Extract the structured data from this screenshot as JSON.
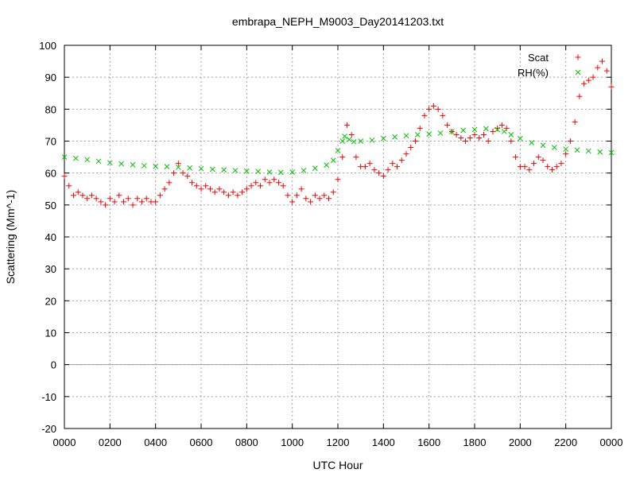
{
  "chart_data": {
    "type": "scatter",
    "title": "embrapa_NEPH_M9003_Day20141203.txt",
    "xlabel": "UTC Hour",
    "ylabel": "Scattering (Mm^-1)",
    "xlim": [
      0,
      24
    ],
    "ylim": [
      -20,
      100
    ],
    "x_tick_labels": [
      "0000",
      "0200",
      "0400",
      "0600",
      "0800",
      "1000",
      "1200",
      "1400",
      "1600",
      "1800",
      "2000",
      "2200",
      "0000"
    ],
    "y_tick_labels": [
      "-20",
      "-10",
      "0",
      "10",
      "20",
      "30",
      "40",
      "50",
      "60",
      "70",
      "80",
      "90",
      "100"
    ],
    "grid": true,
    "legend_position": "top-right",
    "series": [
      {
        "name": "Scat",
        "marker": "+",
        "color": "#ff0000",
        "points": [
          [
            0.0,
            59
          ],
          [
            0.2,
            56
          ],
          [
            0.4,
            53
          ],
          [
            0.6,
            54
          ],
          [
            0.8,
            53
          ],
          [
            1.0,
            52
          ],
          [
            1.2,
            53
          ],
          [
            1.4,
            52
          ],
          [
            1.6,
            51
          ],
          [
            1.8,
            50
          ],
          [
            2.0,
            52
          ],
          [
            2.2,
            51
          ],
          [
            2.4,
            53
          ],
          [
            2.6,
            51
          ],
          [
            2.8,
            52
          ],
          [
            3.0,
            50
          ],
          [
            3.2,
            52
          ],
          [
            3.4,
            51
          ],
          [
            3.6,
            52
          ],
          [
            3.8,
            51
          ],
          [
            4.0,
            51
          ],
          [
            4.2,
            53
          ],
          [
            4.4,
            55
          ],
          [
            4.6,
            57
          ],
          [
            4.8,
            60
          ],
          [
            5.0,
            63
          ],
          [
            5.2,
            60
          ],
          [
            5.4,
            59
          ],
          [
            5.6,
            57
          ],
          [
            5.8,
            56
          ],
          [
            6.0,
            55
          ],
          [
            6.2,
            56
          ],
          [
            6.4,
            55
          ],
          [
            6.6,
            54
          ],
          [
            6.8,
            55
          ],
          [
            7.0,
            54
          ],
          [
            7.2,
            53
          ],
          [
            7.4,
            54
          ],
          [
            7.6,
            53
          ],
          [
            7.8,
            54
          ],
          [
            8.0,
            55
          ],
          [
            8.2,
            56
          ],
          [
            8.4,
            57
          ],
          [
            8.6,
            56
          ],
          [
            8.8,
            58
          ],
          [
            9.0,
            57
          ],
          [
            9.2,
            58
          ],
          [
            9.4,
            57
          ],
          [
            9.6,
            56
          ],
          [
            9.8,
            53
          ],
          [
            10.0,
            51
          ],
          [
            10.2,
            53
          ],
          [
            10.4,
            55
          ],
          [
            10.6,
            52
          ],
          [
            10.8,
            51
          ],
          [
            11.0,
            53
          ],
          [
            11.2,
            52
          ],
          [
            11.4,
            53
          ],
          [
            11.6,
            52
          ],
          [
            11.8,
            54
          ],
          [
            12.0,
            58
          ],
          [
            12.2,
            65
          ],
          [
            12.4,
            75
          ],
          [
            12.6,
            72
          ],
          [
            12.8,
            65
          ],
          [
            13.0,
            62
          ],
          [
            13.2,
            62
          ],
          [
            13.4,
            63
          ],
          [
            13.6,
            61
          ],
          [
            13.8,
            60
          ],
          [
            14.0,
            59
          ],
          [
            14.2,
            61
          ],
          [
            14.4,
            63
          ],
          [
            14.6,
            62
          ],
          [
            14.8,
            64
          ],
          [
            15.0,
            66
          ],
          [
            15.2,
            68
          ],
          [
            15.4,
            70
          ],
          [
            15.6,
            74
          ],
          [
            15.8,
            78
          ],
          [
            16.0,
            80
          ],
          [
            16.2,
            81
          ],
          [
            16.4,
            80
          ],
          [
            16.6,
            78
          ],
          [
            16.8,
            75
          ],
          [
            17.0,
            73
          ],
          [
            17.2,
            72
          ],
          [
            17.4,
            71
          ],
          [
            17.6,
            70
          ],
          [
            17.8,
            71
          ],
          [
            18.0,
            72
          ],
          [
            18.2,
            71
          ],
          [
            18.4,
            72
          ],
          [
            18.6,
            70
          ],
          [
            18.8,
            73
          ],
          [
            19.0,
            74
          ],
          [
            19.2,
            75
          ],
          [
            19.4,
            74
          ],
          [
            19.6,
            70
          ],
          [
            19.8,
            65
          ],
          [
            20.0,
            62
          ],
          [
            20.2,
            62
          ],
          [
            20.4,
            61
          ],
          [
            20.6,
            63
          ],
          [
            20.8,
            65
          ],
          [
            21.0,
            64
          ],
          [
            21.2,
            62
          ],
          [
            21.4,
            61
          ],
          [
            21.6,
            62
          ],
          [
            21.8,
            63
          ],
          [
            22.0,
            66
          ],
          [
            22.2,
            70
          ],
          [
            22.4,
            76
          ],
          [
            22.6,
            84
          ],
          [
            22.8,
            88
          ],
          [
            23.0,
            89
          ],
          [
            23.2,
            90
          ],
          [
            23.4,
            93
          ],
          [
            23.6,
            95
          ],
          [
            23.8,
            92
          ],
          [
            24.0,
            87
          ]
        ]
      },
      {
        "name": "RH(%)",
        "marker": "x",
        "color": "#00c000",
        "points": [
          [
            0.0,
            65
          ],
          [
            0.5,
            64.6
          ],
          [
            1.0,
            64.2
          ],
          [
            1.5,
            63.7
          ],
          [
            2.0,
            63.2
          ],
          [
            2.5,
            62.9
          ],
          [
            3.0,
            62.6
          ],
          [
            3.5,
            62.3
          ],
          [
            4.0,
            62.1
          ],
          [
            4.5,
            62.0
          ],
          [
            5.0,
            61.8
          ],
          [
            5.5,
            61.6
          ],
          [
            6.0,
            61.4
          ],
          [
            6.5,
            61.2
          ],
          [
            7.0,
            61.0
          ],
          [
            7.5,
            60.8
          ],
          [
            8.0,
            60.6
          ],
          [
            8.5,
            60.5
          ],
          [
            9.0,
            60.3
          ],
          [
            9.5,
            60.2
          ],
          [
            10.0,
            60.3
          ],
          [
            10.5,
            60.8
          ],
          [
            11.0,
            61.5
          ],
          [
            11.5,
            62.5
          ],
          [
            11.8,
            64
          ],
          [
            12.0,
            67
          ],
          [
            12.2,
            70
          ],
          [
            12.3,
            71.5
          ],
          [
            12.5,
            70.5
          ],
          [
            12.7,
            69.8
          ],
          [
            13.0,
            70.0
          ],
          [
            13.5,
            70.3
          ],
          [
            14.0,
            70.8
          ],
          [
            14.5,
            71.3
          ],
          [
            15.0,
            71.7
          ],
          [
            15.5,
            72.0
          ],
          [
            16.0,
            72.2
          ],
          [
            16.5,
            72.5
          ],
          [
            17.0,
            73.0
          ],
          [
            17.5,
            73.4
          ],
          [
            18.0,
            73.6
          ],
          [
            18.5,
            73.9
          ],
          [
            19.0,
            73.6
          ],
          [
            19.3,
            73.0
          ],
          [
            19.6,
            72.0
          ],
          [
            20.0,
            70.8
          ],
          [
            20.5,
            69.5
          ],
          [
            21.0,
            68.7
          ],
          [
            21.5,
            68.0
          ],
          [
            22.0,
            67.5
          ],
          [
            22.5,
            67.2
          ],
          [
            23.0,
            66.9
          ],
          [
            23.5,
            66.6
          ],
          [
            24.0,
            66.4
          ]
        ]
      }
    ]
  }
}
